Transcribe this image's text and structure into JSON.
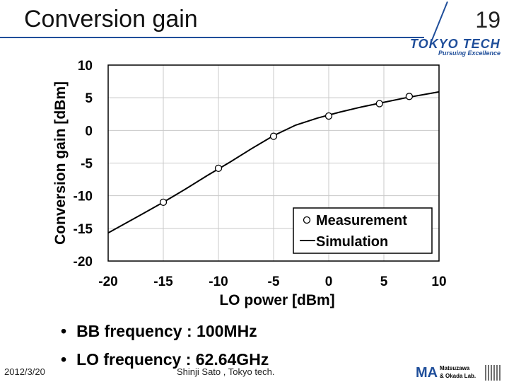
{
  "slide": {
    "title": "Conversion gain",
    "number": "19",
    "logo_main": "TOKYO TECH",
    "logo_sub": "Pursuing Excellence",
    "bullets": [
      "BB frequency : 100MHz",
      "LO frequency : 62.64GHz"
    ],
    "date": "2012/3/20",
    "author": "Shinji Sato , Tokyo tech.",
    "lab_logo_text": [
      "Matsuzawa",
      "& Okada Lab."
    ],
    "lab_logo_mark": "MA"
  },
  "chart_data": {
    "type": "scatter",
    "xlabel": "LO power [dBm]",
    "ylabel": "Conversion gain [dBm]",
    "xlim": [
      -20,
      10
    ],
    "ylim": [
      -20,
      10
    ],
    "xticks": [
      "-20",
      "-15",
      "-10",
      "-5",
      "0",
      "5",
      "10"
    ],
    "yticks": [
      "10",
      "5",
      "0",
      "-5",
      "-10",
      "-15",
      "-20"
    ],
    "legend_position": "bottom-right",
    "series": [
      {
        "name": "Measurement",
        "style": "markers",
        "x": [
          -15,
          -10,
          -5,
          0,
          4.6,
          7.3
        ],
        "y": [
          -11,
          -5.8,
          -0.9,
          2.2,
          4.1,
          5.2
        ]
      },
      {
        "name": "Simulation",
        "style": "line",
        "x": [
          -20,
          -17,
          -15,
          -13,
          -11,
          -9,
          -7,
          -5,
          -3,
          -1,
          1,
          3,
          5,
          7,
          9,
          10
        ],
        "y": [
          -15.7,
          -12.9,
          -11.0,
          -9.0,
          -6.9,
          -4.9,
          -2.8,
          -0.8,
          0.8,
          1.9,
          2.8,
          3.6,
          4.3,
          5.0,
          5.6,
          5.9
        ]
      }
    ]
  },
  "colors": {
    "accent": "#1f4e9a",
    "ink": "#000000"
  }
}
